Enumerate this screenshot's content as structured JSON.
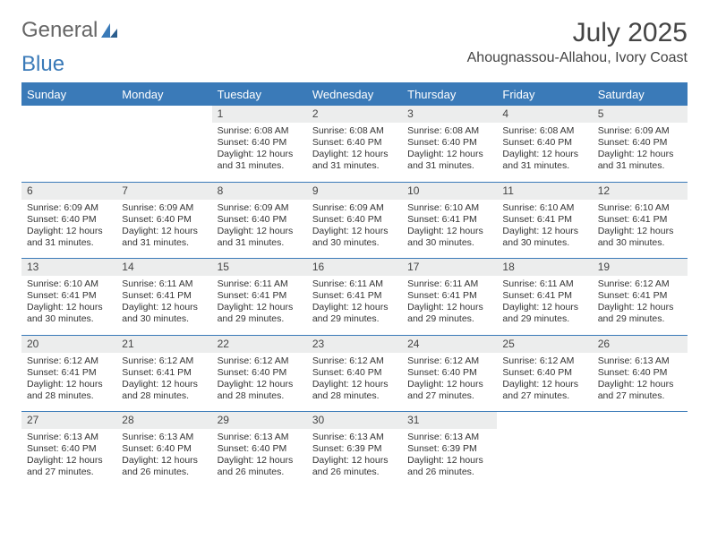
{
  "logo": {
    "text_general": "General",
    "text_blue": "Blue"
  },
  "header": {
    "month_title": "July 2025",
    "location": "Ahougnassou-Allahou, Ivory Coast"
  },
  "colors": {
    "accent": "#3a7ab8",
    "header_bg": "#3a7ab8",
    "header_text": "#ffffff",
    "daynum_bg": "#eceded",
    "page_bg": "#ffffff",
    "text": "#333333"
  },
  "weekdays": [
    "Sunday",
    "Monday",
    "Tuesday",
    "Wednesday",
    "Thursday",
    "Friday",
    "Saturday"
  ],
  "weeks": [
    [
      null,
      null,
      {
        "n": "1",
        "sr": "6:08 AM",
        "ss": "6:40 PM",
        "dl": "12 hours and 31 minutes."
      },
      {
        "n": "2",
        "sr": "6:08 AM",
        "ss": "6:40 PM",
        "dl": "12 hours and 31 minutes."
      },
      {
        "n": "3",
        "sr": "6:08 AM",
        "ss": "6:40 PM",
        "dl": "12 hours and 31 minutes."
      },
      {
        "n": "4",
        "sr": "6:08 AM",
        "ss": "6:40 PM",
        "dl": "12 hours and 31 minutes."
      },
      {
        "n": "5",
        "sr": "6:09 AM",
        "ss": "6:40 PM",
        "dl": "12 hours and 31 minutes."
      }
    ],
    [
      {
        "n": "6",
        "sr": "6:09 AM",
        "ss": "6:40 PM",
        "dl": "12 hours and 31 minutes."
      },
      {
        "n": "7",
        "sr": "6:09 AM",
        "ss": "6:40 PM",
        "dl": "12 hours and 31 minutes."
      },
      {
        "n": "8",
        "sr": "6:09 AM",
        "ss": "6:40 PM",
        "dl": "12 hours and 31 minutes."
      },
      {
        "n": "9",
        "sr": "6:09 AM",
        "ss": "6:40 PM",
        "dl": "12 hours and 30 minutes."
      },
      {
        "n": "10",
        "sr": "6:10 AM",
        "ss": "6:41 PM",
        "dl": "12 hours and 30 minutes."
      },
      {
        "n": "11",
        "sr": "6:10 AM",
        "ss": "6:41 PM",
        "dl": "12 hours and 30 minutes."
      },
      {
        "n": "12",
        "sr": "6:10 AM",
        "ss": "6:41 PM",
        "dl": "12 hours and 30 minutes."
      }
    ],
    [
      {
        "n": "13",
        "sr": "6:10 AM",
        "ss": "6:41 PM",
        "dl": "12 hours and 30 minutes."
      },
      {
        "n": "14",
        "sr": "6:11 AM",
        "ss": "6:41 PM",
        "dl": "12 hours and 30 minutes."
      },
      {
        "n": "15",
        "sr": "6:11 AM",
        "ss": "6:41 PM",
        "dl": "12 hours and 29 minutes."
      },
      {
        "n": "16",
        "sr": "6:11 AM",
        "ss": "6:41 PM",
        "dl": "12 hours and 29 minutes."
      },
      {
        "n": "17",
        "sr": "6:11 AM",
        "ss": "6:41 PM",
        "dl": "12 hours and 29 minutes."
      },
      {
        "n": "18",
        "sr": "6:11 AM",
        "ss": "6:41 PM",
        "dl": "12 hours and 29 minutes."
      },
      {
        "n": "19",
        "sr": "6:12 AM",
        "ss": "6:41 PM",
        "dl": "12 hours and 29 minutes."
      }
    ],
    [
      {
        "n": "20",
        "sr": "6:12 AM",
        "ss": "6:41 PM",
        "dl": "12 hours and 28 minutes."
      },
      {
        "n": "21",
        "sr": "6:12 AM",
        "ss": "6:41 PM",
        "dl": "12 hours and 28 minutes."
      },
      {
        "n": "22",
        "sr": "6:12 AM",
        "ss": "6:40 PM",
        "dl": "12 hours and 28 minutes."
      },
      {
        "n": "23",
        "sr": "6:12 AM",
        "ss": "6:40 PM",
        "dl": "12 hours and 28 minutes."
      },
      {
        "n": "24",
        "sr": "6:12 AM",
        "ss": "6:40 PM",
        "dl": "12 hours and 27 minutes."
      },
      {
        "n": "25",
        "sr": "6:12 AM",
        "ss": "6:40 PM",
        "dl": "12 hours and 27 minutes."
      },
      {
        "n": "26",
        "sr": "6:13 AM",
        "ss": "6:40 PM",
        "dl": "12 hours and 27 minutes."
      }
    ],
    [
      {
        "n": "27",
        "sr": "6:13 AM",
        "ss": "6:40 PM",
        "dl": "12 hours and 27 minutes."
      },
      {
        "n": "28",
        "sr": "6:13 AM",
        "ss": "6:40 PM",
        "dl": "12 hours and 26 minutes."
      },
      {
        "n": "29",
        "sr": "6:13 AM",
        "ss": "6:40 PM",
        "dl": "12 hours and 26 minutes."
      },
      {
        "n": "30",
        "sr": "6:13 AM",
        "ss": "6:39 PM",
        "dl": "12 hours and 26 minutes."
      },
      {
        "n": "31",
        "sr": "6:13 AM",
        "ss": "6:39 PM",
        "dl": "12 hours and 26 minutes."
      },
      null,
      null
    ]
  ],
  "labels": {
    "sunrise": "Sunrise:",
    "sunset": "Sunset:",
    "daylight": "Daylight:"
  }
}
